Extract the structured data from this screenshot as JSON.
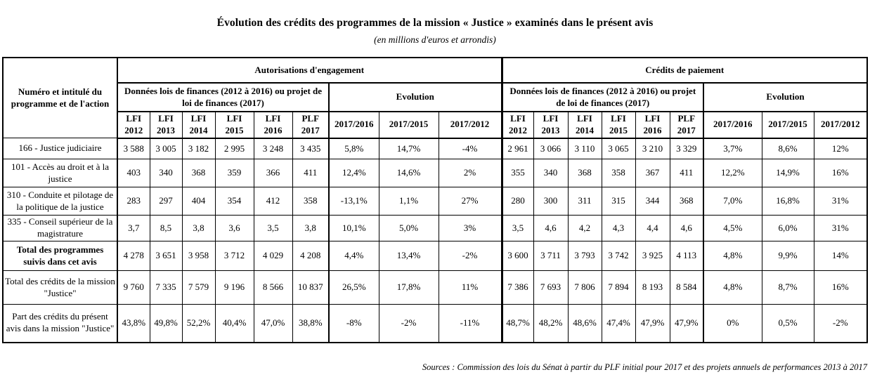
{
  "title": "Évolution des crédits des programmes de la mission « Justice » examinés dans le présent avis",
  "subtitle": "(en millions d'euros et arrondis)",
  "source": "Sources : Commission des lois du Sénat à partir du PLF initial pour 2017 et des projets annuels de performances 2013 à 2017",
  "table": {
    "corner_header": "Numéro et intitulé du programme et de l'action",
    "group_ae": "Autorisations d'engagement",
    "group_cp": "Crédits de paiement",
    "subheader_data": "Données lois de finances (2012 à 2016) ou projet de loi de finances (2017)",
    "subheader_evolution": "Evolution",
    "columns_ae": [
      "LFI\n2012",
      "LFI\n2013",
      "LFI\n2014",
      "LFI 2015",
      "LFI 2016",
      "PLF 2017",
      "2017/2016",
      "2017/2015",
      "2017/2012"
    ],
    "columns_cp": [
      "LFI\n2012",
      "LFI\n2013",
      "LFI\n2014",
      "LFI\n2015",
      "LFI\n2016",
      "PLF\n2017",
      "2017/2016",
      "2017/2015",
      "2017/2012"
    ],
    "rows": [
      {
        "label": "166 - Justice judiciaire",
        "bold": false,
        "values": [
          "3 588",
          "3 005",
          "3 182",
          "2 995",
          "3 248",
          "3 435",
          "5,8%",
          "14,7%",
          "-4%",
          "2 961",
          "3 066",
          "3 110",
          "3 065",
          "3 210",
          "3 329",
          "3,7%",
          "8,6%",
          "12%"
        ]
      },
      {
        "label": "101 - Accès au droit et à la justice",
        "bold": false,
        "values": [
          "403",
          "340",
          "368",
          "359",
          "366",
          "411",
          "12,4%",
          "14,6%",
          "2%",
          "355",
          "340",
          "368",
          "358",
          "367",
          "411",
          "12,2%",
          "14,9%",
          "16%"
        ]
      },
      {
        "label": "310 - Conduite et pilotage de la politique de la justice",
        "bold": false,
        "values": [
          "283",
          "297",
          "404",
          "354",
          "412",
          "358",
          "-13,1%",
          "1,1%",
          "27%",
          "280",
          "300",
          "311",
          "315",
          "344",
          "368",
          "7,0%",
          "16,8%",
          "31%"
        ]
      },
      {
        "label": "335 - Conseil supérieur de la magistrature",
        "bold": false,
        "values": [
          "3,7",
          "8,5",
          "3,8",
          "3,6",
          "3,5",
          "3,8",
          "10,1%",
          "5,0%",
          "3%",
          "3,5",
          "4,6",
          "4,2",
          "4,3",
          "4,4",
          "4,6",
          "4,5%",
          "6,0%",
          "31%"
        ]
      },
      {
        "label": "Total des programmes suivis dans cet avis",
        "bold": true,
        "values": [
          "4 278",
          "3 651",
          "3 958",
          "3 712",
          "4 029",
          "4 208",
          "4,4%",
          "13,4%",
          "-2%",
          "3 600",
          "3 711",
          "3 793",
          "3 742",
          "3 925",
          "4 113",
          "4,8%",
          "9,9%",
          "14%"
        ]
      },
      {
        "label": "Total des crédits de la mission \"Justice\"",
        "bold": false,
        "values": [
          "9 760",
          "7 335",
          "7 579",
          "9 196",
          "8 566",
          "10 837",
          "26,5%",
          "17,8%",
          "11%",
          "7 386",
          "7 693",
          "7 806",
          "7 894",
          "8 193",
          "8 584",
          "4,8%",
          "8,7%",
          "16%"
        ]
      },
      {
        "label": "Part des crédits du présent avis dans la mission \"Justice\"",
        "bold": false,
        "values": [
          "43,8%",
          "49,8%",
          "52,2%",
          "40,4%",
          "47,0%",
          "38,8%",
          "-8%",
          "-2%",
          "-11%",
          "48,7%",
          "48,2%",
          "48,6%",
          "47,4%",
          "47,9%",
          "47,9%",
          "0%",
          "0,5%",
          "-2%"
        ]
      }
    ]
  }
}
